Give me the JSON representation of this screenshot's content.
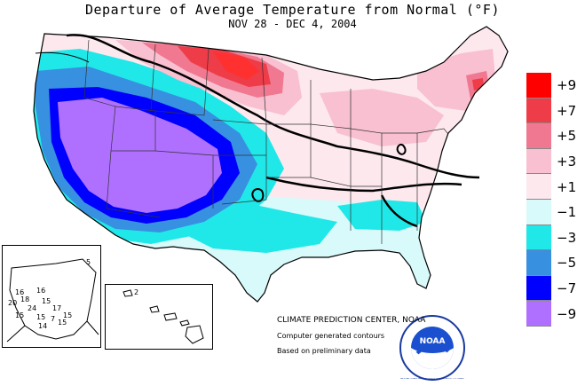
{
  "header": {
    "title": "Departure of Average Temperature from Normal (°F)",
    "subtitle": "NOV 28 - DEC  4, 2004"
  },
  "legend": [
    {
      "label": "+9",
      "color": "#ff0000"
    },
    {
      "label": "+7",
      "color": "#ee3c48"
    },
    {
      "label": "+5",
      "color": "#f07890"
    },
    {
      "label": "+3",
      "color": "#f8c0d0"
    },
    {
      "label": "+1",
      "color": "#fde8ee"
    },
    {
      "label": "−1",
      "color": "#d8fafa"
    },
    {
      "label": "−3",
      "color": "#20e8e8"
    },
    {
      "label": "−5",
      "color": "#3890e0"
    },
    {
      "label": "−7",
      "color": "#0000ff"
    },
    {
      "label": "−9",
      "color": "#b070ff"
    }
  ],
  "credits": {
    "line1": "CLIMATE PREDICTION CENTER, NOAA",
    "line2": "Computer generated contours",
    "line3": "Based on preliminary data"
  },
  "logo": {
    "text": "NOAA",
    "ring_text": "NATIONAL OCEANIC AND ATMOSPHERIC ADMINISTRATION · U.S. DEPARTMENT OF COMMERCE"
  },
  "alaska": {
    "values": [
      "16",
      "16",
      "15",
      "24",
      "17",
      "15",
      "15",
      "15",
      "15",
      "14",
      "7",
      "20",
      "5",
      "18"
    ]
  },
  "hawaii": {
    "values": [
      "2"
    ]
  }
}
